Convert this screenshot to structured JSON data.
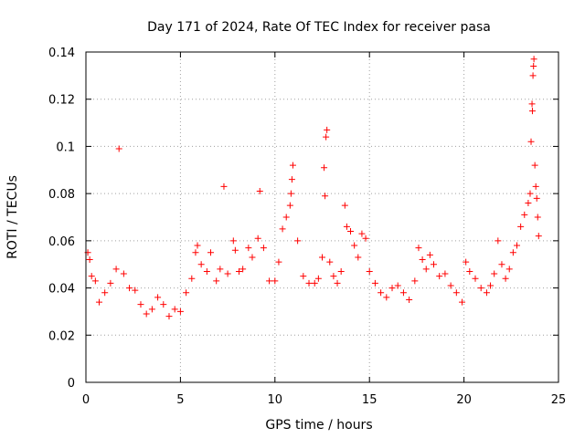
{
  "chart_data": {
    "type": "scatter",
    "title": "Day 171 of 2024, Rate Of TEC Index for receiver pasa",
    "xlabel": "GPS time / hours",
    "ylabel": "ROTI / TECUs",
    "xlim": [
      0,
      25
    ],
    "ylim": [
      0,
      0.14
    ],
    "x_ticks": [
      0,
      5,
      10,
      15,
      20,
      25
    ],
    "x_tick_labels": [
      "0",
      "5",
      "10",
      "15",
      "20",
      "25"
    ],
    "y_ticks": [
      0,
      0.02,
      0.04,
      0.06,
      0.08,
      0.1,
      0.12,
      0.14
    ],
    "y_tick_labels": [
      "0",
      "0.02",
      "0.04",
      "0.06",
      "0.08",
      "0.1",
      "0.12",
      "0.14"
    ],
    "grid": true,
    "marker": "plus",
    "color": "#ff0000",
    "series": [
      {
        "points": [
          [
            0.1,
            0.055
          ],
          [
            0.2,
            0.052
          ],
          [
            0.3,
            0.045
          ],
          [
            0.5,
            0.043
          ],
          [
            0.7,
            0.034
          ],
          [
            1.0,
            0.038
          ],
          [
            1.3,
            0.042
          ],
          [
            1.6,
            0.048
          ],
          [
            1.75,
            0.099
          ],
          [
            2.0,
            0.046
          ],
          [
            2.3,
            0.04
          ],
          [
            2.6,
            0.039
          ],
          [
            2.9,
            0.033
          ],
          [
            3.2,
            0.029
          ],
          [
            3.5,
            0.031
          ],
          [
            3.8,
            0.036
          ],
          [
            4.1,
            0.033
          ],
          [
            4.4,
            0.028
          ],
          [
            4.7,
            0.031
          ],
          [
            5.0,
            0.03
          ],
          [
            5.3,
            0.038
          ],
          [
            5.6,
            0.044
          ],
          [
            5.8,
            0.055
          ],
          [
            5.9,
            0.058
          ],
          [
            6.1,
            0.05
          ],
          [
            6.4,
            0.047
          ],
          [
            6.6,
            0.055
          ],
          [
            6.9,
            0.043
          ],
          [
            7.1,
            0.048
          ],
          [
            7.3,
            0.083
          ],
          [
            7.5,
            0.046
          ],
          [
            7.8,
            0.06
          ],
          [
            7.9,
            0.056
          ],
          [
            8.1,
            0.047
          ],
          [
            8.3,
            0.048
          ],
          [
            8.6,
            0.057
          ],
          [
            8.8,
            0.053
          ],
          [
            9.1,
            0.061
          ],
          [
            9.2,
            0.081
          ],
          [
            9.4,
            0.057
          ],
          [
            9.7,
            0.043
          ],
          [
            10.0,
            0.043
          ],
          [
            10.2,
            0.051
          ],
          [
            10.4,
            0.065
          ],
          [
            10.6,
            0.07
          ],
          [
            10.8,
            0.075
          ],
          [
            10.85,
            0.08
          ],
          [
            10.9,
            0.086
          ],
          [
            10.95,
            0.092
          ],
          [
            11.2,
            0.06
          ],
          [
            11.5,
            0.045
          ],
          [
            11.8,
            0.042
          ],
          [
            12.1,
            0.042
          ],
          [
            12.3,
            0.044
          ],
          [
            12.5,
            0.053
          ],
          [
            12.6,
            0.091
          ],
          [
            12.65,
            0.079
          ],
          [
            12.7,
            0.104
          ],
          [
            12.75,
            0.107
          ],
          [
            12.9,
            0.051
          ],
          [
            13.1,
            0.045
          ],
          [
            13.3,
            0.042
          ],
          [
            13.5,
            0.047
          ],
          [
            13.7,
            0.075
          ],
          [
            13.8,
            0.066
          ],
          [
            14.0,
            0.064
          ],
          [
            14.2,
            0.058
          ],
          [
            14.4,
            0.053
          ],
          [
            14.6,
            0.063
          ],
          [
            14.8,
            0.061
          ],
          [
            15.0,
            0.047
          ],
          [
            15.3,
            0.042
          ],
          [
            15.6,
            0.038
          ],
          [
            15.9,
            0.036
          ],
          [
            16.2,
            0.04
          ],
          [
            16.5,
            0.041
          ],
          [
            16.8,
            0.038
          ],
          [
            17.1,
            0.035
          ],
          [
            17.4,
            0.043
          ],
          [
            17.6,
            0.057
          ],
          [
            17.8,
            0.052
          ],
          [
            18.0,
            0.048
          ],
          [
            18.2,
            0.054
          ],
          [
            18.4,
            0.05
          ],
          [
            18.7,
            0.045
          ],
          [
            19.0,
            0.046
          ],
          [
            19.3,
            0.041
          ],
          [
            19.6,
            0.038
          ],
          [
            19.9,
            0.034
          ],
          [
            20.1,
            0.051
          ],
          [
            20.3,
            0.047
          ],
          [
            20.6,
            0.044
          ],
          [
            20.9,
            0.04
          ],
          [
            21.2,
            0.038
          ],
          [
            21.4,
            0.041
          ],
          [
            21.6,
            0.046
          ],
          [
            21.8,
            0.06
          ],
          [
            22.0,
            0.05
          ],
          [
            22.2,
            0.044
          ],
          [
            22.4,
            0.048
          ],
          [
            22.6,
            0.055
          ],
          [
            22.8,
            0.058
          ],
          [
            23.0,
            0.066
          ],
          [
            23.2,
            0.071
          ],
          [
            23.4,
            0.076
          ],
          [
            23.5,
            0.08
          ],
          [
            23.55,
            0.102
          ],
          [
            23.6,
            0.118
          ],
          [
            23.62,
            0.115
          ],
          [
            23.65,
            0.13
          ],
          [
            23.68,
            0.134
          ],
          [
            23.7,
            0.137
          ],
          [
            23.75,
            0.092
          ],
          [
            23.8,
            0.083
          ],
          [
            23.85,
            0.078
          ],
          [
            23.9,
            0.07
          ],
          [
            23.95,
            0.062
          ]
        ]
      }
    ]
  }
}
